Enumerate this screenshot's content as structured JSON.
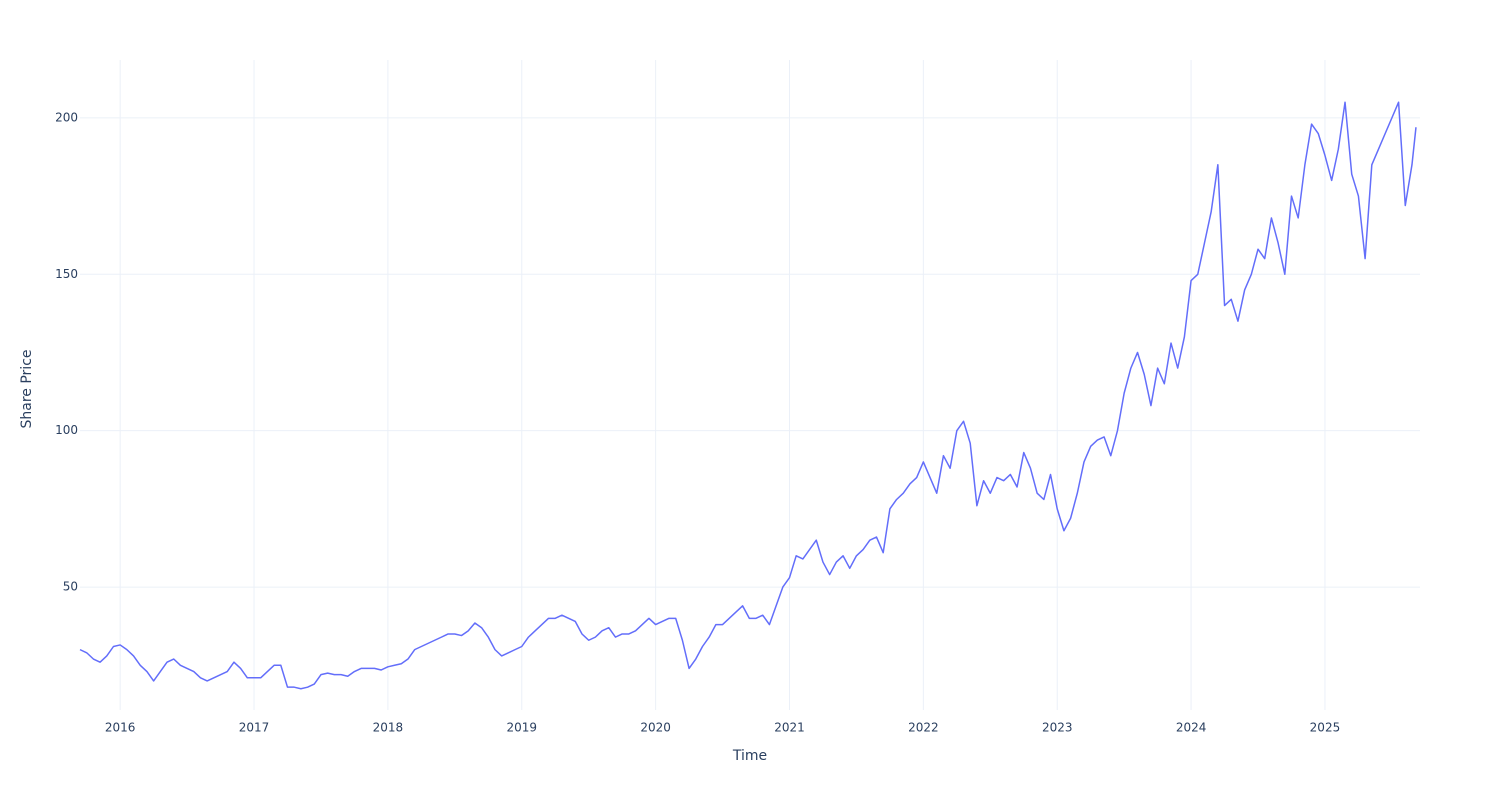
{
  "chart_data": {
    "type": "line",
    "x_label": "Time",
    "y_label": "Share Price",
    "color": "#636efa",
    "grid": true,
    "xlim": [
      2015.7,
      2025.71
    ],
    "xticks": [
      2016,
      2017,
      2018,
      2019,
      2020,
      2021,
      2022,
      2023,
      2024,
      2025
    ],
    "ylim": [
      10.7,
      218.5
    ],
    "yticks": [
      50,
      100,
      150,
      200
    ],
    "x": [
      2015.7,
      2015.75,
      2015.8,
      2015.85,
      2015.9,
      2015.95,
      2016.0,
      2016.05,
      2016.1,
      2016.15,
      2016.2,
      2016.25,
      2016.3,
      2016.35,
      2016.4,
      2016.45,
      2016.5,
      2016.55,
      2016.6,
      2016.65,
      2016.7,
      2016.75,
      2016.8,
      2016.85,
      2016.9,
      2016.95,
      2017.0,
      2017.05,
      2017.1,
      2017.15,
      2017.2,
      2017.25,
      2017.3,
      2017.35,
      2017.4,
      2017.45,
      2017.5,
      2017.55,
      2017.6,
      2017.65,
      2017.7,
      2017.75,
      2017.8,
      2017.85,
      2017.9,
      2017.95,
      2018.0,
      2018.05,
      2018.1,
      2018.15,
      2018.2,
      2018.25,
      2018.3,
      2018.35,
      2018.4,
      2018.45,
      2018.5,
      2018.55,
      2018.6,
      2018.65,
      2018.7,
      2018.75,
      2018.8,
      2018.85,
      2018.9,
      2018.95,
      2019.0,
      2019.05,
      2019.1,
      2019.15,
      2019.2,
      2019.25,
      2019.3,
      2019.35,
      2019.4,
      2019.45,
      2019.5,
      2019.55,
      2019.6,
      2019.65,
      2019.7,
      2019.75,
      2019.8,
      2019.85,
      2019.9,
      2019.95,
      2020.0,
      2020.05,
      2020.1,
      2020.15,
      2020.2,
      2020.25,
      2020.3,
      2020.35,
      2020.4,
      2020.45,
      2020.5,
      2020.55,
      2020.6,
      2020.65,
      2020.7,
      2020.75,
      2020.8,
      2020.85,
      2020.9,
      2020.95,
      2021.0,
      2021.05,
      2021.1,
      2021.15,
      2021.2,
      2021.25,
      2021.3,
      2021.35,
      2021.4,
      2021.45,
      2021.5,
      2021.55,
      2021.6,
      2021.65,
      2021.7,
      2021.75,
      2021.8,
      2021.85,
      2021.9,
      2021.95,
      2022.0,
      2022.05,
      2022.1,
      2022.15,
      2022.2,
      2022.25,
      2022.3,
      2022.35,
      2022.4,
      2022.45,
      2022.5,
      2022.55,
      2022.6,
      2022.65,
      2022.7,
      2022.75,
      2022.8,
      2022.85,
      2022.9,
      2022.95,
      2023.0,
      2023.05,
      2023.1,
      2023.15,
      2023.2,
      2023.25,
      2023.3,
      2023.35,
      2023.4,
      2023.45,
      2023.5,
      2023.55,
      2023.6,
      2023.65,
      2023.7,
      2023.75,
      2023.8,
      2023.85,
      2023.9,
      2023.95,
      2024.0,
      2024.05,
      2024.1,
      2024.15,
      2024.2,
      2024.25,
      2024.3,
      2024.35,
      2024.4,
      2024.45,
      2024.5,
      2024.55,
      2024.6,
      2024.65,
      2024.7,
      2024.75,
      2024.8,
      2024.85,
      2024.9,
      2024.95,
      2025.0,
      2025.05,
      2025.1,
      2025.15,
      2025.2,
      2025.25,
      2025.3,
      2025.35,
      2025.4,
      2025.45,
      2025.5,
      2025.55,
      2025.6,
      2025.65,
      2025.68
    ],
    "values": [
      30,
      29,
      27,
      26,
      28,
      31,
      31.5,
      30,
      28,
      25,
      23,
      20,
      23,
      26,
      27,
      25,
      24,
      23,
      21,
      20,
      21,
      22,
      23,
      26,
      24,
      21,
      21,
      21,
      23,
      25,
      25,
      18,
      18,
      17.5,
      18,
      19,
      22,
      22.5,
      22,
      22,
      21.5,
      23,
      24,
      24,
      24,
      23.5,
      24.5,
      25,
      25.5,
      27,
      30,
      31,
      32,
      33,
      34,
      35,
      35,
      34.5,
      36,
      38.5,
      37,
      34,
      30,
      28,
      29,
      30,
      31,
      34,
      36,
      38,
      40,
      40,
      41,
      40,
      39,
      35,
      33,
      34,
      36,
      37,
      34,
      35,
      35,
      36,
      38,
      40,
      38,
      39,
      40,
      40,
      33,
      24,
      27,
      31,
      34,
      38,
      38,
      40,
      42,
      44,
      40,
      40,
      41,
      38,
      44,
      50,
      53,
      60,
      59,
      62,
      65,
      58,
      54,
      58,
      60,
      56,
      60,
      62,
      65,
      66,
      61,
      75,
      78,
      80,
      83,
      85,
      90,
      85,
      80,
      92,
      88,
      100,
      103,
      96,
      76,
      84,
      80,
      85,
      84,
      86,
      82,
      93,
      88,
      80,
      78,
      86,
      75,
      68,
      72,
      80,
      90,
      95,
      97,
      98,
      92,
      100,
      112,
      120,
      125,
      118,
      108,
      120,
      115,
      128,
      120,
      130,
      148,
      150,
      160,
      170,
      185,
      140,
      142,
      135,
      145,
      150,
      158,
      155,
      168,
      160,
      150,
      175,
      168,
      185,
      198,
      195,
      188,
      180,
      190,
      205,
      182,
      175,
      155,
      185,
      190,
      195,
      200,
      205,
      172,
      185,
      197
    ]
  }
}
